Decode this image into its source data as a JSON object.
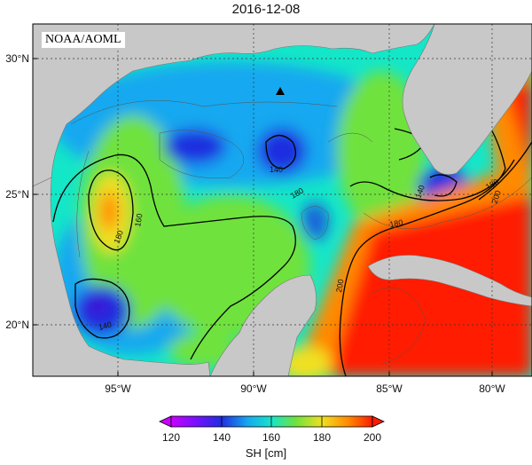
{
  "title": "2016-12-08",
  "source_label": "NOAA/AOML",
  "map": {
    "lon_ticks": [
      "95°W",
      "90°W",
      "85°W",
      "80°W"
    ],
    "lat_ticks": [
      "30°N",
      "25°N",
      "20°N"
    ],
    "contour_labels": [
      "140",
      "160",
      "180",
      "140",
      "180",
      "180",
      "140",
      "180",
      "200",
      "200"
    ],
    "marker": "triangle",
    "colors": {
      "land": "#c8c8c8",
      "c120": "#c800ff",
      "c140": "#1f2ee0",
      "c150": "#16a8f0",
      "c160": "#14e6c8",
      "c170": "#70e23c",
      "c180": "#f0e020",
      "c190": "#ff8a00",
      "c200": "#ff1a00"
    }
  },
  "colorbar": {
    "title": "SH [cm]",
    "tick_labels": [
      "120",
      "140",
      "160",
      "180",
      "200"
    ]
  }
}
